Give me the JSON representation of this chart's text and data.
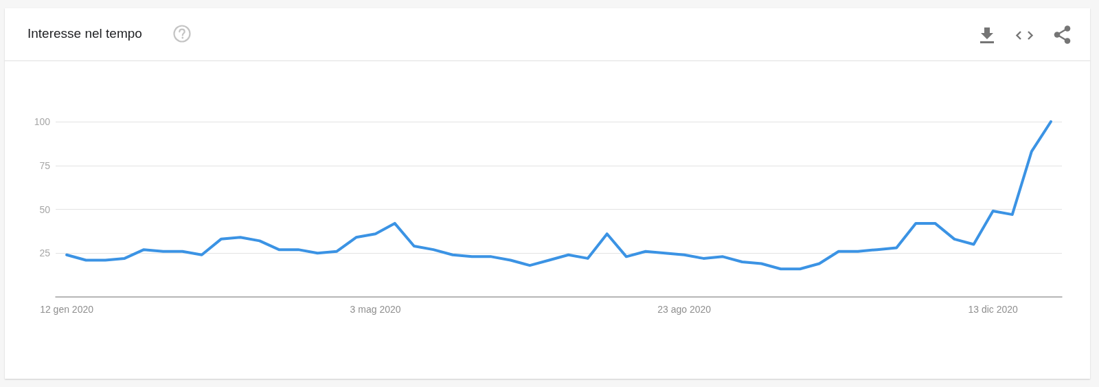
{
  "chart_data": {
    "type": "line",
    "title": "Interesse nel tempo",
    "x": [
      "2020-01-12",
      "2020-01-19",
      "2020-01-26",
      "2020-02-02",
      "2020-02-09",
      "2020-02-16",
      "2020-02-23",
      "2020-03-01",
      "2020-03-08",
      "2020-03-15",
      "2020-03-22",
      "2020-03-29",
      "2020-04-05",
      "2020-04-12",
      "2020-04-19",
      "2020-04-26",
      "2020-05-03",
      "2020-05-10",
      "2020-05-17",
      "2020-05-24",
      "2020-05-31",
      "2020-06-07",
      "2020-06-14",
      "2020-06-21",
      "2020-06-28",
      "2020-07-05",
      "2020-07-12",
      "2020-07-19",
      "2020-07-26",
      "2020-08-02",
      "2020-08-09",
      "2020-08-16",
      "2020-08-23",
      "2020-08-30",
      "2020-09-06",
      "2020-09-13",
      "2020-09-20",
      "2020-09-27",
      "2020-10-04",
      "2020-10-11",
      "2020-10-18",
      "2020-10-25",
      "2020-11-01",
      "2020-11-08",
      "2020-11-15",
      "2020-11-22",
      "2020-11-29",
      "2020-12-06",
      "2020-12-13",
      "2020-12-20",
      "2020-12-27",
      "2021-01-03"
    ],
    "values": [
      24,
      21,
      21,
      22,
      27,
      26,
      26,
      24,
      33,
      34,
      32,
      27,
      27,
      25,
      26,
      34,
      36,
      42,
      29,
      27,
      24,
      23,
      23,
      21,
      18,
      21,
      24,
      22,
      36,
      23,
      26,
      25,
      24,
      22,
      23,
      20,
      19,
      16,
      16,
      19,
      26,
      26,
      27,
      28,
      42,
      42,
      33,
      30,
      49,
      47,
      83,
      100
    ],
    "color": "#3b93e4",
    "xlim": [
      "2020-01-08",
      "2021-01-07"
    ],
    "xticks": [
      {
        "value": "2020-01-12",
        "label": "12 gen 2020"
      },
      {
        "value": "2020-05-03",
        "label": "3 mag 2020"
      },
      {
        "value": "2020-08-23",
        "label": "23 ago 2020"
      },
      {
        "value": "2020-12-13",
        "label": "13 dic 2020"
      }
    ],
    "ylim": [
      0,
      100
    ],
    "yticks": [
      25,
      50,
      75,
      100
    ],
    "grid": "y"
  }
}
